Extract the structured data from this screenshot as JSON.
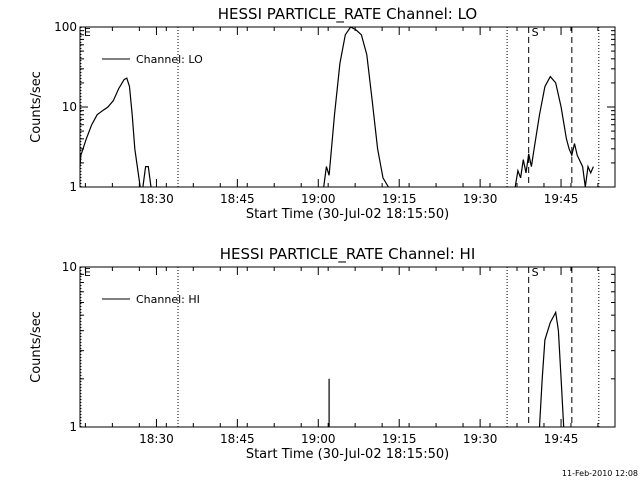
{
  "footer": {
    "timestamp": "11-Feb-2010 12:08"
  },
  "chart_data": [
    {
      "type": "line",
      "title": "HESSI PARTICLE_RATE Channel: LO",
      "xlabel": "Start Time (30-Jul-02 18:15:50)",
      "ylabel": "Counts/sec",
      "y_scale": "log",
      "ylim": [
        1,
        100
      ],
      "xlim": [
        "18:15:50",
        "19:55:00"
      ],
      "x_ticks": [
        "18:30",
        "18:45",
        "19:00",
        "19:15",
        "19:30",
        "19:45"
      ],
      "y_ticks": [
        "1",
        "10",
        "100"
      ],
      "grid": false,
      "legend": {
        "position": "top-left",
        "entries": [
          "Channel: LO"
        ]
      },
      "markers": [
        {
          "label": "E",
          "time": "18:16",
          "style": "dotted"
        },
        {
          "label": "",
          "time": "18:34",
          "style": "dotted"
        },
        {
          "label": "",
          "time": "19:35",
          "style": "dotted"
        },
        {
          "label": "S",
          "time": "19:39",
          "style": "dashed"
        },
        {
          "label": "",
          "time": "19:47",
          "style": "dashed"
        },
        {
          "label": "",
          "time": "19:52",
          "style": "dotted"
        }
      ],
      "series": [
        {
          "name": "Channel: LO",
          "segments": [
            {
              "x": [
                "18:15:50",
                "18:16",
                "18:17",
                "18:18",
                "18:19",
                "18:20",
                "18:21",
                "18:22",
                "18:23",
                "18:24",
                "18:24:30",
                "18:25",
                "18:25:30",
                "18:26",
                "18:27"
              ],
              "y": [
                1.8,
                2.5,
                4,
                6,
                8,
                9,
                10,
                12,
                17,
                22,
                23,
                18,
                8,
                3,
                1
              ]
            },
            {
              "x": [
                "18:27:30",
                "18:28",
                "18:28:30",
                "18:29"
              ],
              "y": [
                1,
                1.8,
                1.8,
                1
              ]
            },
            {
              "x": [
                "19:01",
                "19:01:30",
                "19:02",
                "19:03",
                "19:04",
                "19:05",
                "19:06",
                "19:07",
                "19:08",
                "19:09",
                "19:10",
                "19:11",
                "19:12",
                "19:13"
              ],
              "y": [
                1,
                1.8,
                1.4,
                8,
                35,
                80,
                100,
                92,
                80,
                45,
                12,
                3,
                1.3,
                1
              ]
            },
            {
              "x": [
                "19:36:30",
                "19:37",
                "19:37:30",
                "19:38",
                "19:38:30",
                "19:39",
                "19:39:30",
                "19:40",
                "19:41",
                "19:42",
                "19:43",
                "19:44",
                "19:45",
                "19:46",
                "19:46:30",
                "19:47",
                "19:47:30",
                "19:48",
                "19:49",
                "19:49:30",
                "19:50",
                "19:50:30",
                "19:51"
              ],
              "y": [
                1,
                1.6,
                1.3,
                2.2,
                1.5,
                2.6,
                1.8,
                3,
                8,
                18,
                24,
                20,
                10,
                4,
                3,
                2.5,
                3.5,
                2.5,
                1.8,
                1,
                1.8,
                1.5,
                1.8
              ]
            }
          ]
        }
      ]
    },
    {
      "type": "line",
      "title": "HESSI PARTICLE_RATE Channel: HI",
      "xlabel": "Start Time (30-Jul-02 18:15:50)",
      "ylabel": "Counts/sec",
      "y_scale": "log",
      "ylim": [
        1,
        10
      ],
      "xlim": [
        "18:15:50",
        "19:55:00"
      ],
      "x_ticks": [
        "18:30",
        "18:45",
        "19:00",
        "19:15",
        "19:30",
        "19:45"
      ],
      "y_ticks": [
        "1",
        "10"
      ],
      "grid": false,
      "legend": {
        "position": "top-left",
        "entries": [
          "Channel: HI"
        ]
      },
      "markers": [
        {
          "label": "E",
          "time": "18:16",
          "style": "dotted"
        },
        {
          "label": "",
          "time": "18:34",
          "style": "dotted"
        },
        {
          "label": "",
          "time": "19:35",
          "style": "dotted"
        },
        {
          "label": "S",
          "time": "19:39",
          "style": "dashed"
        },
        {
          "label": "",
          "time": "19:47",
          "style": "dashed"
        },
        {
          "label": "",
          "time": "19:52",
          "style": "dotted"
        }
      ],
      "series": [
        {
          "name": "Channel: HI",
          "segments": [
            {
              "x": [
                "19:02",
                "19:02",
                "19:02"
              ],
              "y": [
                1,
                2,
                1
              ]
            },
            {
              "x": [
                "19:41",
                "19:41:30",
                "19:42",
                "19:43",
                "19:44",
                "19:44:30",
                "19:45",
                "19:45:30"
              ],
              "y": [
                1,
                2,
                3.5,
                4.5,
                5.2,
                4,
                2,
                1
              ]
            }
          ]
        }
      ]
    }
  ]
}
